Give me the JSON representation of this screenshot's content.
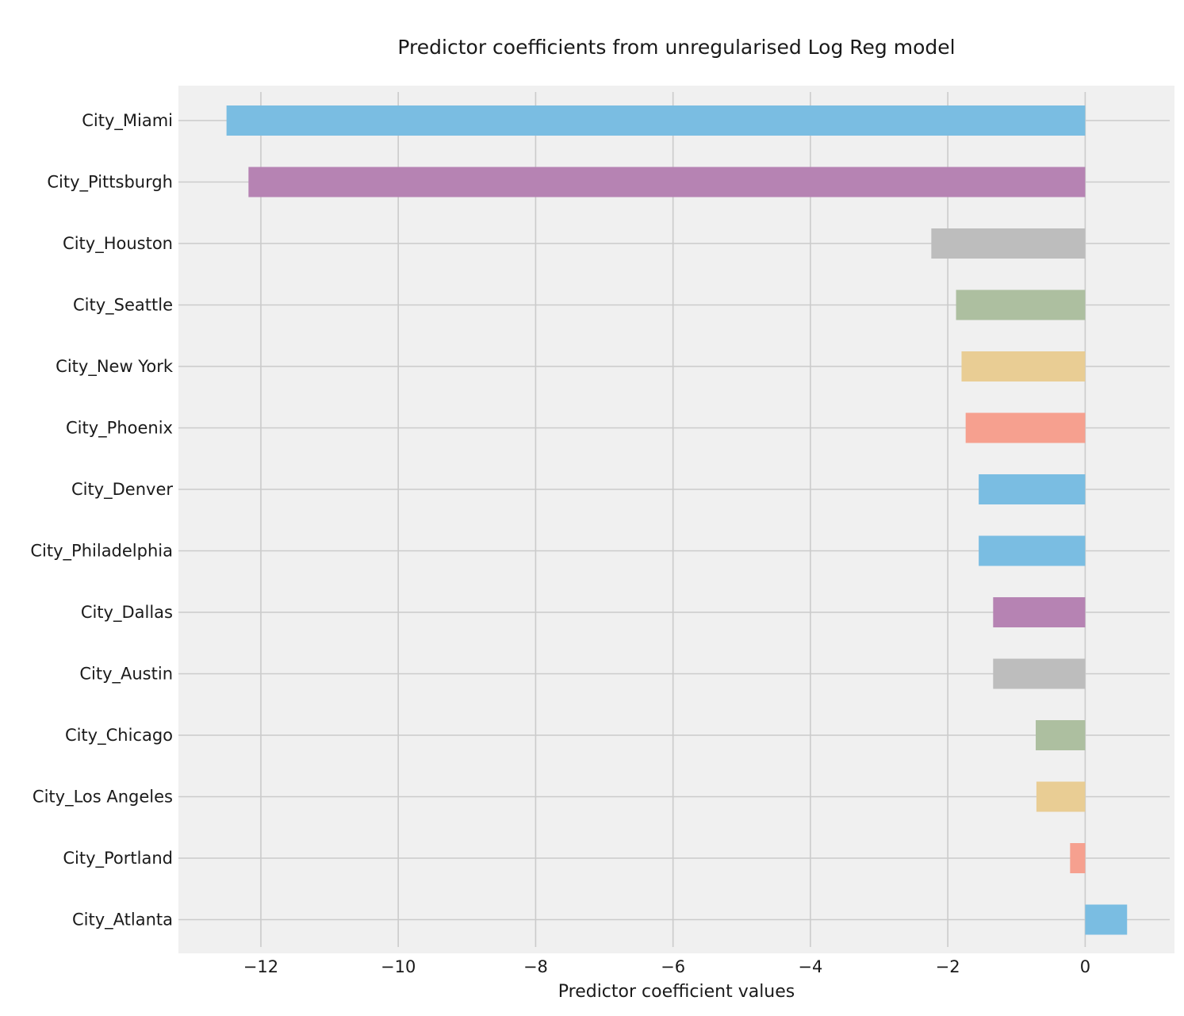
{
  "chart_data": {
    "type": "bar",
    "orientation": "horizontal",
    "title": "Predictor coefficients from unregularised Log Reg model",
    "xlabel": "Predictor coefficient values",
    "ylabel": "",
    "categories": [
      "City_Miami",
      "City_Pittsburgh",
      "City_Houston",
      "City_Seattle",
      "City_New York",
      "City_Phoenix",
      "City_Denver",
      "City_Philadelphia",
      "City_Dallas",
      "City_Austin",
      "City_Chicago",
      "City_Los Angeles",
      "City_Portland",
      "City_Atlanta"
    ],
    "values": [
      -12.5,
      -12.18,
      -2.24,
      -1.88,
      -1.8,
      -1.74,
      -1.55,
      -1.55,
      -1.34,
      -1.34,
      -0.72,
      -0.71,
      -0.22,
      0.61
    ],
    "bar_colors": [
      "#7abde2",
      "#b683b3",
      "#bdbdbd",
      "#adbfa0",
      "#e9cd94",
      "#f6a08f",
      "#7abde2",
      "#7abde2",
      "#b683b3",
      "#bdbdbd",
      "#adbfa0",
      "#e9cd94",
      "#f6a08f",
      "#7abde2"
    ],
    "xlim": [
      -13.2,
      1.3
    ],
    "xticks": [
      -12,
      -10,
      -8,
      -6,
      -4,
      -2,
      0
    ],
    "xtick_labels": [
      "−12",
      "−10",
      "−8",
      "−6",
      "−4",
      "−2",
      "0"
    ],
    "grid": true,
    "legend": "none",
    "style": "fivethirtyeight"
  }
}
